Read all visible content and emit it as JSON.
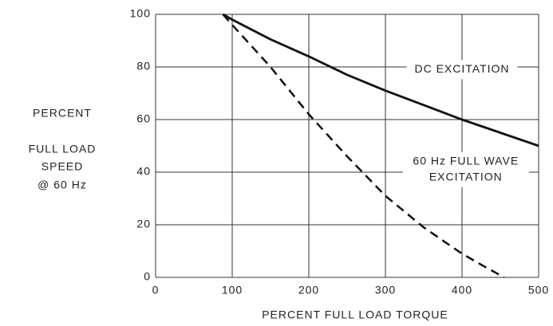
{
  "chart_data": {
    "type": "line",
    "y_label": [
      "PERCENT",
      "FULL LOAD",
      "SPEED",
      "@ 60 Hz"
    ],
    "x_label": "PERCENT FULL LOAD TORQUE",
    "series": [
      {
        "color": "#111111",
        "dash": false,
        "x": [
          88,
          100,
          150,
          200,
          250,
          300,
          350,
          400,
          450,
          500
        ],
        "values": [
          100,
          98,
          90.5,
          84,
          77,
          71,
          65.5,
          60,
          55,
          50
        ]
      },
      {
        "color": "#111111",
        "dash": true,
        "x": [
          88,
          100,
          150,
          200,
          250,
          300,
          350,
          400,
          430,
          455
        ],
        "values": [
          100,
          96,
          80,
          62,
          46,
          31,
          19,
          9,
          4,
          0
        ]
      }
    ],
    "annotations": [
      {
        "lines": [
          "DC EXCITATION"
        ],
        "x": 400,
        "y": 79
      },
      {
        "lines": [
          "60 Hz FULL WAVE",
          "EXCITATION"
        ],
        "x": 405,
        "y": 41
      }
    ],
    "xlim": [
      0,
      500
    ],
    "xticks": [
      0,
      100,
      200,
      300,
      400,
      500
    ],
    "ylim": [
      0,
      100
    ],
    "yticks": [
      0,
      20,
      40,
      60,
      80,
      100
    ],
    "grid": true
  }
}
